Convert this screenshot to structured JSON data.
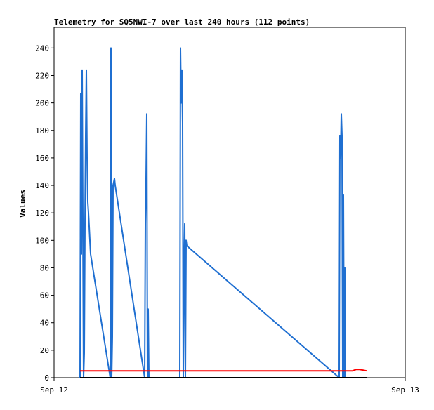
{
  "chart_data": {
    "type": "line",
    "title": "Telemetry for SQ5NWI-7 over last 240 hours (112 points)",
    "xlabel": "",
    "ylabel": "Values",
    "x_tick_labels": [
      "Sep 12",
      "Sep 13"
    ],
    "y_ticks": [
      0,
      20,
      40,
      60,
      80,
      100,
      120,
      140,
      160,
      180,
      200,
      220,
      240
    ],
    "ylim": [
      0,
      255
    ],
    "xlim_fraction": [
      0,
      1
    ],
    "grid": false,
    "legend": "none",
    "colors": {
      "series_blue": "#1f6fd1",
      "series_red": "#ff0000",
      "series_black": "#000000",
      "axis": "#000000"
    },
    "series": [
      {
        "color": "#1f6fd1",
        "x": [
          0.074,
          0.076,
          0.078,
          0.08,
          0.082,
          0.084,
          0.086,
          0.088,
          0.09,
          0.092,
          0.094,
          0.096,
          0.098,
          0.1,
          0.102,
          0.104,
          0.16,
          0.162,
          0.164,
          0.166,
          0.168,
          0.172,
          0.174,
          0.258,
          0.26,
          0.262,
          0.264,
          0.266,
          0.268,
          0.27,
          0.358,
          0.36,
          0.362,
          0.364,
          0.366,
          0.368,
          0.37,
          0.372,
          0.374,
          0.376,
          0.378,
          0.812,
          0.814,
          0.816,
          0.818,
          0.82,
          0.822,
          0.824,
          0.826,
          0.828,
          0.83
        ],
        "values": [
          0,
          207,
          90,
          224,
          115,
          0,
          18,
          112,
          176,
          224,
          160,
          128,
          120,
          110,
          100,
          90,
          0,
          240,
          0,
          30,
          140,
          145,
          140,
          0,
          112,
          145,
          192,
          0,
          50,
          0,
          0,
          240,
          200,
          224,
          185,
          0,
          80,
          112,
          0,
          100,
          96,
          0,
          176,
          160,
          192,
          176,
          0,
          133,
          0,
          80,
          0
        ]
      },
      {
        "color": "#ff0000",
        "x": [
          0.074,
          0.85,
          0.86,
          0.87,
          0.88,
          0.89
        ],
        "values": [
          5,
          5,
          6,
          6,
          5.5,
          5
        ]
      },
      {
        "color": "#000000",
        "x": [
          0.074,
          0.89
        ],
        "values": [
          0,
          0
        ]
      }
    ]
  }
}
